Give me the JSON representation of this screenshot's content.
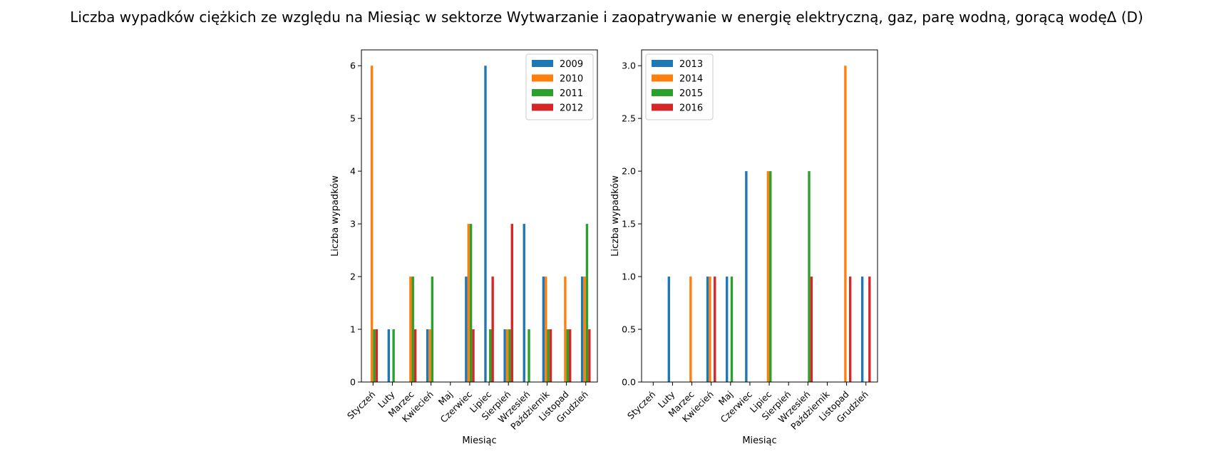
{
  "title": "Liczba wypadków ciężkich ze względu na Miesiąc w sektorze Wytwarzanie i zaopatrywanie w energię elektryczną, gaz, parę wodną, gorącą wodęΔ  (D)",
  "colors": {
    "2009": "#1f77b4",
    "2010": "#ff7f0e",
    "2011": "#2ca02c",
    "2012": "#d62728",
    "2013": "#1f77b4",
    "2014": "#ff7f0e",
    "2015": "#2ca02c",
    "2016": "#d62728"
  },
  "chart_data": [
    {
      "type": "bar",
      "xlabel": "Miesiąc",
      "ylabel": "Liczba wypadków",
      "categories": [
        "Styczeń",
        "Luty",
        "Marzec",
        "Kwiecień",
        "Maj",
        "Czerwiec",
        "Lipiec",
        "Sierpień",
        "Wrzesień",
        "Październik",
        "Listopad",
        "Grudzień"
      ],
      "ylim": [
        0,
        6.3
      ],
      "yticks": [
        0,
        1,
        2,
        3,
        4,
        5,
        6
      ],
      "ytick_labels": [
        "0",
        "1",
        "2",
        "3",
        "4",
        "5",
        "6"
      ],
      "legend_position": "upper right",
      "series": [
        {
          "name": "2009",
          "values": [
            0,
            1,
            0,
            1,
            0,
            2,
            6,
            1,
            3,
            2,
            0,
            2
          ]
        },
        {
          "name": "2010",
          "values": [
            6,
            0,
            2,
            1,
            0,
            3,
            0,
            1,
            0,
            2,
            2,
            2
          ]
        },
        {
          "name": "2011",
          "values": [
            1,
            1,
            2,
            2,
            0,
            3,
            1,
            1,
            1,
            1,
            1,
            3
          ]
        },
        {
          "name": "2012",
          "values": [
            1,
            0,
            1,
            0,
            0,
            1,
            2,
            3,
            0,
            1,
            1,
            1
          ]
        }
      ]
    },
    {
      "type": "bar",
      "xlabel": "Miesiąc",
      "ylabel": "Liczba wypadków",
      "categories": [
        "Styczeń",
        "Luty",
        "Marzec",
        "Kwiecień",
        "Maj",
        "Czerwiec",
        "Lipiec",
        "Sierpień",
        "Wrzesień",
        "Październik",
        "Listopad",
        "Grudzień"
      ],
      "ylim": [
        0,
        3.15
      ],
      "yticks": [
        0,
        0.5,
        1,
        1.5,
        2,
        2.5,
        3
      ],
      "ytick_labels": [
        "0.0",
        "0.5",
        "1.0",
        "1.5",
        "2.0",
        "2.5",
        "3.0"
      ],
      "legend_position": "upper left",
      "series": [
        {
          "name": "2013",
          "values": [
            0,
            1,
            0,
            1,
            1,
            2,
            0,
            0,
            0,
            0,
            0,
            1
          ]
        },
        {
          "name": "2014",
          "values": [
            0,
            0,
            1,
            1,
            0,
            0,
            2,
            0,
            0,
            0,
            3,
            0
          ]
        },
        {
          "name": "2015",
          "values": [
            0,
            0,
            0,
            0,
            1,
            0,
            2,
            0,
            2,
            0,
            0,
            0
          ]
        },
        {
          "name": "2016",
          "values": [
            0,
            0,
            0,
            1,
            0,
            0,
            0,
            0,
            1,
            0,
            1,
            1
          ]
        }
      ]
    }
  ]
}
